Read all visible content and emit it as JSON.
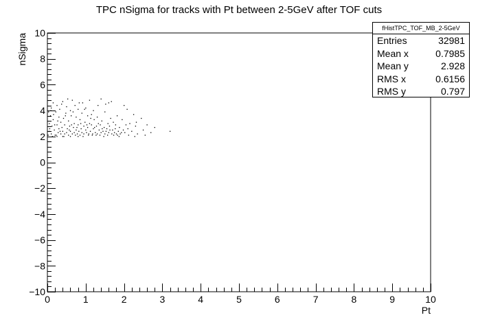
{
  "chart_data": {
    "type": "scatter",
    "title": "TPC nSigma for tracks with Pt between 2-5GeV after TOF cuts",
    "xlabel": "Pt",
    "ylabel": "nSigma",
    "xlim": [
      0,
      10
    ],
    "ylim": [
      -10,
      10
    ],
    "x_ticks": [
      "0",
      "1",
      "2",
      "3",
      "4",
      "5",
      "6",
      "7",
      "8",
      "9",
      "10"
    ],
    "y_ticks": [
      "−10",
      "−8",
      "−6",
      "−4",
      "−2",
      "0",
      "2",
      "4",
      "6",
      "8",
      "10"
    ],
    "grid": false,
    "points": [
      [
        0.02,
        2.1
      ],
      [
        0.05,
        2.4
      ],
      [
        0.05,
        3.0
      ],
      [
        0.08,
        3.6
      ],
      [
        0.1,
        4.2
      ],
      [
        0.1,
        2.2
      ],
      [
        0.12,
        2.8
      ],
      [
        0.15,
        3.3
      ],
      [
        0.15,
        4.6
      ],
      [
        0.18,
        2.5
      ],
      [
        0.2,
        2.1
      ],
      [
        0.22,
        3.9
      ],
      [
        0.25,
        2.9
      ],
      [
        0.25,
        4.4
      ],
      [
        0.28,
        2.3
      ],
      [
        0.3,
        3.5
      ],
      [
        0.3,
        2.6
      ],
      [
        0.32,
        4.1
      ],
      [
        0.35,
        2.2
      ],
      [
        0.35,
        3.1
      ],
      [
        0.38,
        2.7
      ],
      [
        0.4,
        4.7
      ],
      [
        0.4,
        2.4
      ],
      [
        0.42,
        3.4
      ],
      [
        0.45,
        2.2
      ],
      [
        0.45,
        2.9
      ],
      [
        0.48,
        3.8
      ],
      [
        0.5,
        2.3
      ],
      [
        0.5,
        4.3
      ],
      [
        0.52,
        2.6
      ],
      [
        0.55,
        3.2
      ],
      [
        0.55,
        2.1
      ],
      [
        0.58,
        2.8
      ],
      [
        0.6,
        4.0
      ],
      [
        0.6,
        2.4
      ],
      [
        0.62,
        3.6
      ],
      [
        0.65,
        2.2
      ],
      [
        0.65,
        4.8
      ],
      [
        0.68,
        2.7
      ],
      [
        0.7,
        3.0
      ],
      [
        0.7,
        2.3
      ],
      [
        0.72,
        4.4
      ],
      [
        0.75,
        2.5
      ],
      [
        0.75,
        3.5
      ],
      [
        0.78,
        2.2
      ],
      [
        0.8,
        2.9
      ],
      [
        0.8,
        4.1
      ],
      [
        0.82,
        2.4
      ],
      [
        0.85,
        3.3
      ],
      [
        0.85,
        2.1
      ],
      [
        0.88,
        2.6
      ],
      [
        0.9,
        3.8
      ],
      [
        0.9,
        2.3
      ],
      [
        0.92,
        4.6
      ],
      [
        0.95,
        2.8
      ],
      [
        0.95,
        2.2
      ],
      [
        0.98,
        3.1
      ],
      [
        1.0,
        2.5
      ],
      [
        1.0,
        4.2
      ],
      [
        1.02,
        2.3
      ],
      [
        1.05,
        3.6
      ],
      [
        1.05,
        2.7
      ],
      [
        1.08,
        2.2
      ],
      [
        1.1,
        3.0
      ],
      [
        1.1,
        4.8
      ],
      [
        1.12,
        2.4
      ],
      [
        1.15,
        2.9
      ],
      [
        1.15,
        3.7
      ],
      [
        1.18,
        2.2
      ],
      [
        1.2,
        2.6
      ],
      [
        1.2,
        4.0
      ],
      [
        1.22,
        3.3
      ],
      [
        1.25,
        2.3
      ],
      [
        1.28,
        2.8
      ],
      [
        1.3,
        3.5
      ],
      [
        1.3,
        2.2
      ],
      [
        1.32,
        4.4
      ],
      [
        1.35,
        2.5
      ],
      [
        1.38,
        2.9
      ],
      [
        1.4,
        2.3
      ],
      [
        1.4,
        4.9
      ],
      [
        1.42,
        3.2
      ],
      [
        1.45,
        2.4
      ],
      [
        1.48,
        2.7
      ],
      [
        1.5,
        3.9
      ],
      [
        1.5,
        2.2
      ],
      [
        1.52,
        4.5
      ],
      [
        1.55,
        2.6
      ],
      [
        1.58,
        3.0
      ],
      [
        1.6,
        2.3
      ],
      [
        1.62,
        2.8
      ],
      [
        1.65,
        3.4
      ],
      [
        1.68,
        2.2
      ],
      [
        1.7,
        2.5
      ],
      [
        1.72,
        3.1
      ],
      [
        1.75,
        2.3
      ],
      [
        1.78,
        2.9
      ],
      [
        1.8,
        2.2
      ],
      [
        1.82,
        3.6
      ],
      [
        1.85,
        2.4
      ],
      [
        1.88,
        2.7
      ],
      [
        1.9,
        2.2
      ],
      [
        1.95,
        3.3
      ],
      [
        1.98,
        2.5
      ],
      [
        2.0,
        4.4
      ],
      [
        2.02,
        2.3
      ],
      [
        2.05,
        2.9
      ],
      [
        2.08,
        4.1
      ],
      [
        2.1,
        2.6
      ],
      [
        2.15,
        3.0
      ],
      [
        2.2,
        2.4
      ],
      [
        2.25,
        3.7
      ],
      [
        2.3,
        2.8
      ],
      [
        2.35,
        2.2
      ],
      [
        2.45,
        3.4
      ],
      [
        2.5,
        2.5
      ],
      [
        2.6,
        2.9
      ],
      [
        2.7,
        2.3
      ],
      [
        2.8,
        2.7
      ],
      [
        3.2,
        2.4
      ],
      [
        0.03,
        3.9
      ],
      [
        0.06,
        2.6
      ],
      [
        0.09,
        4.0
      ],
      [
        0.13,
        2.0
      ],
      [
        0.16,
        3.7
      ],
      [
        0.19,
        2.9
      ],
      [
        0.23,
        2.1
      ],
      [
        0.27,
        3.2
      ],
      [
        0.33,
        2.4
      ],
      [
        0.37,
        4.5
      ],
      [
        0.43,
        2.0
      ],
      [
        0.47,
        3.6
      ],
      [
        0.53,
        4.9
      ],
      [
        0.57,
        2.5
      ],
      [
        0.63,
        2.9
      ],
      [
        0.67,
        3.9
      ],
      [
        0.73,
        2.1
      ],
      [
        0.77,
        2.7
      ],
      [
        0.83,
        4.6
      ],
      [
        0.87,
        3.0
      ],
      [
        0.93,
        2.0
      ],
      [
        0.97,
        4.1
      ],
      [
        1.03,
        2.9
      ],
      [
        1.07,
        2.1
      ],
      [
        1.13,
        3.4
      ],
      [
        1.17,
        2.1
      ],
      [
        1.23,
        2.7
      ],
      [
        1.27,
        2.1
      ],
      [
        1.33,
        3.0
      ],
      [
        1.37,
        2.1
      ],
      [
        1.43,
        2.6
      ],
      [
        1.47,
        2.0
      ],
      [
        1.53,
        2.4
      ],
      [
        1.57,
        2.1
      ],
      [
        1.63,
        2.5
      ],
      [
        1.67,
        4.7
      ],
      [
        1.73,
        2.1
      ],
      [
        1.77,
        2.6
      ],
      [
        1.83,
        2.1
      ],
      [
        1.87,
        2.0
      ],
      [
        1.93,
        2.3
      ],
      [
        2.12,
        2.1
      ],
      [
        2.28,
        2.0
      ],
      [
        2.55,
        2.1
      ],
      [
        2.32,
        3.1
      ],
      [
        1.6,
        4.6
      ],
      [
        0.25,
        2.0
      ],
      [
        0.4,
        2.0
      ],
      [
        0.6,
        2.0
      ],
      [
        0.8,
        2.0
      ]
    ]
  },
  "stats": {
    "title": "fHistTPC_TOF_MB_2-5GeV",
    "rows": [
      {
        "label": "Entries",
        "value": "32981"
      },
      {
        "label": "Mean x",
        "value": "0.7985"
      },
      {
        "label": "Mean y",
        "value": "2.928"
      },
      {
        "label": "RMS x",
        "value": "0.6156"
      },
      {
        "label": "RMS y",
        "value": "0.797"
      }
    ]
  }
}
